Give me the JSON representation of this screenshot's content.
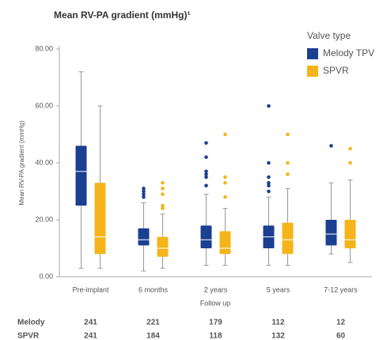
{
  "chart_data": {
    "type": "box",
    "title": "Mean RV-PA gradient (mmHg)¹",
    "y_label": "Mean RV-PA gradient (mmHg)",
    "x_label": "Follow up",
    "legend_title": "Valve type",
    "categories": [
      "Pre-implant",
      "6 months",
      "2 years",
      "5 years",
      "7-12 years"
    ],
    "ylim": [
      0,
      80
    ],
    "yticks": [
      {
        "value": 0,
        "label": "0.00"
      },
      {
        "value": 20,
        "label": "20.00"
      },
      {
        "value": 40,
        "label": "40.00"
      },
      {
        "value": 60,
        "label": "60.00"
      },
      {
        "value": 80,
        "label": "80.00"
      }
    ],
    "series": [
      {
        "name": "Melody TPV",
        "color": "#1b3f91",
        "min": [
          3,
          2,
          4,
          4,
          8
        ],
        "q1": [
          25,
          11,
          10,
          10,
          11
        ],
        "median": [
          37,
          13,
          13,
          14,
          15
        ],
        "q3": [
          46,
          17,
          18,
          18,
          20
        ],
        "max": [
          72,
          26,
          29,
          28,
          33
        ],
        "outliers": [
          [],
          [
            28,
            29,
            30,
            31
          ],
          [
            32,
            35,
            36,
            37,
            42,
            47
          ],
          [
            30,
            32,
            33,
            35,
            40,
            60
          ],
          [
            46
          ]
        ]
      },
      {
        "name": "SPVR",
        "color": "#f4b41a",
        "min": [
          3,
          3,
          4,
          4,
          5
        ],
        "q1": [
          8,
          7,
          8,
          8,
          10
        ],
        "median": [
          14,
          10,
          10,
          13,
          13
        ],
        "q3": [
          33,
          14,
          16,
          19,
          20
        ],
        "max": [
          60,
          22,
          24,
          31,
          34
        ],
        "outliers": [
          [],
          [
            24,
            25,
            29,
            31,
            33
          ],
          [
            28,
            33,
            35,
            50
          ],
          [
            36,
            40,
            50
          ],
          [
            40,
            45
          ]
        ]
      }
    ],
    "counts": [
      {
        "label": "Melody",
        "values": [
          241,
          221,
          179,
          112,
          12
        ]
      },
      {
        "label": "SPVR",
        "values": [
          241,
          184,
          118,
          132,
          60
        ]
      }
    ]
  }
}
